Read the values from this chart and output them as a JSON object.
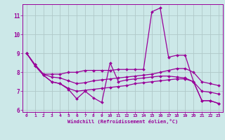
{
  "x": [
    0,
    1,
    2,
    3,
    4,
    5,
    6,
    7,
    8,
    9,
    10,
    11,
    12,
    13,
    14,
    15,
    16,
    17,
    18,
    19,
    20,
    21,
    22,
    23
  ],
  "line_spike": [
    9.0,
    8.4,
    7.9,
    7.9,
    7.9,
    8.0,
    8.0,
    8.1,
    8.1,
    8.1,
    8.1,
    8.15,
    8.15,
    8.15,
    8.15,
    11.2,
    11.4,
    8.8,
    8.9,
    8.9,
    7.5,
    6.5,
    6.5,
    6.35
  ],
  "line_mid_upper": [
    9.0,
    8.4,
    7.9,
    7.75,
    7.7,
    7.55,
    7.4,
    7.45,
    7.55,
    7.6,
    7.65,
    7.7,
    7.75,
    7.8,
    7.85,
    7.9,
    8.0,
    8.1,
    8.2,
    8.2,
    8.0,
    7.5,
    7.4,
    7.3
  ],
  "line_mid_lower": [
    9.0,
    8.35,
    7.85,
    7.5,
    7.4,
    7.15,
    7.0,
    7.05,
    7.1,
    7.15,
    7.2,
    7.25,
    7.3,
    7.4,
    7.45,
    7.5,
    7.55,
    7.6,
    7.65,
    7.65,
    7.5,
    7.0,
    6.95,
    6.85
  ],
  "line_bottom": [
    9.0,
    8.35,
    7.85,
    7.5,
    7.4,
    7.1,
    6.6,
    7.0,
    6.65,
    6.4,
    8.5,
    7.5,
    7.6,
    7.65,
    7.7,
    7.75,
    7.8,
    7.8,
    7.75,
    7.7,
    7.5,
    6.5,
    6.5,
    6.35
  ],
  "ylim": [
    5.9,
    11.6
  ],
  "xlim": [
    -0.5,
    23.5
  ],
  "yticks": [
    6,
    7,
    8,
    9,
    10,
    11
  ],
  "xticks": [
    0,
    1,
    2,
    3,
    4,
    5,
    6,
    7,
    8,
    9,
    10,
    11,
    12,
    13,
    14,
    15,
    16,
    17,
    18,
    19,
    20,
    21,
    22,
    23
  ],
  "line_color": "#990099",
  "bg_color": "#cce8e8",
  "grid_color": "#b0c8c8",
  "xlabel": "Windchill (Refroidissement éolien,°C)",
  "marker": "D",
  "marker_size": 2.0,
  "linewidth": 0.9
}
